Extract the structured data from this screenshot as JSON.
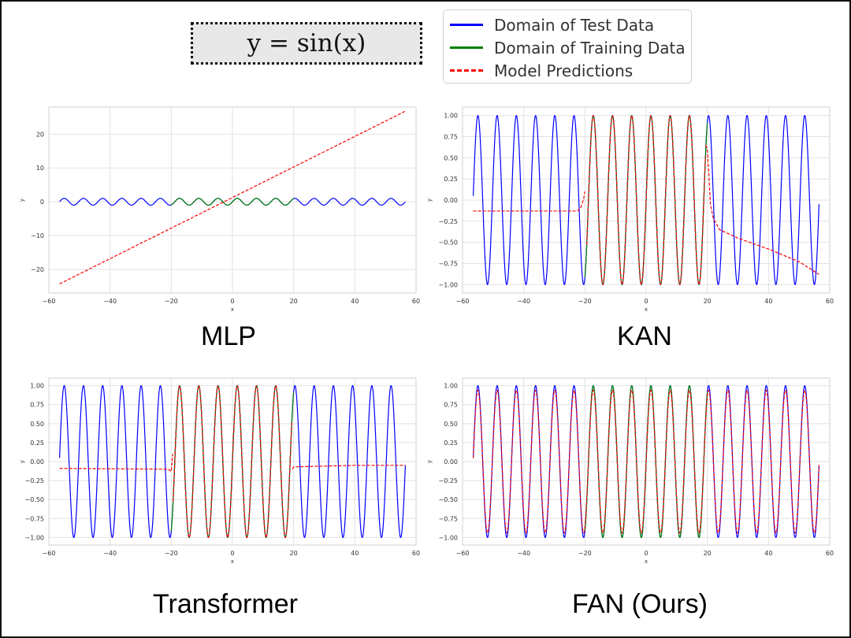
{
  "formula": "y = sin(x)",
  "legend": {
    "items": [
      {
        "label": "Domain of Test Data",
        "color": "#0000ff",
        "style": "solid"
      },
      {
        "label": "Domain of Training Data",
        "color": "#008000",
        "style": "solid"
      },
      {
        "label": "Model Predictions",
        "color": "#ff0000",
        "style": "dashed"
      }
    ]
  },
  "chart_data": [
    {
      "type": "line",
      "title": "MLP",
      "xlabel": "x",
      "ylabel": "y",
      "xlim": [
        -60,
        60
      ],
      "ylim": [
        -27,
        28
      ],
      "xticks": [
        -60,
        -40,
        -20,
        0,
        20,
        40,
        60
      ],
      "yticks": [
        -20,
        -10,
        0,
        10,
        20
      ],
      "ytick_labels": [
        "−20",
        "−10",
        "0",
        "10",
        "20"
      ],
      "xtick_labels": [
        "−60",
        "−40",
        "−20",
        "0",
        "20",
        "40",
        "60"
      ],
      "grid": true,
      "series": [
        {
          "name": "Domain of Test Data",
          "function": "sin(x)",
          "x_range": [
            -56.5,
            56.5
          ],
          "color": "#0000ff"
        },
        {
          "name": "Domain of Training Data",
          "function": "sin(x)",
          "x_range": [
            -20,
            20
          ],
          "color": "#008000"
        },
        {
          "name": "Model Predictions",
          "x": [
            -56.5,
            56.5
          ],
          "y": [
            -24.3,
            26.8
          ],
          "color": "#ff0000",
          "style": "dashed"
        }
      ]
    },
    {
      "type": "line",
      "title": "KAN",
      "xlabel": "x",
      "ylabel": "y",
      "xlim": [
        -60,
        60
      ],
      "ylim": [
        -1.1,
        1.1
      ],
      "xticks": [
        -60,
        -40,
        -20,
        0,
        20,
        40,
        60
      ],
      "xtick_labels": [
        "−60",
        "−40",
        "−20",
        "0",
        "20",
        "40",
        "60"
      ],
      "yticks": [
        -1.0,
        -0.75,
        -0.5,
        -0.25,
        0.0,
        0.25,
        0.5,
        0.75,
        1.0
      ],
      "ytick_labels": [
        "−1.00",
        "−0.75",
        "−0.50",
        "−0.25",
        "0.00",
        "0.25",
        "0.50",
        "0.75",
        "1.00"
      ],
      "grid": true,
      "series": [
        {
          "name": "Domain of Test Data",
          "function": "sin(x)",
          "x_range": [
            -56.5,
            56.5
          ],
          "color": "#0000ff"
        },
        {
          "name": "Domain of Training Data",
          "function": "sin(x)",
          "x_range": [
            -20,
            20
          ],
          "color": "#008000"
        },
        {
          "name": "Model Predictions",
          "color": "#ff0000",
          "style": "dashed",
          "segments": [
            {
              "x": [
                -56.5,
                -22.5
              ],
              "y": [
                -0.13,
                -0.13
              ]
            },
            {
              "x": [
                -22.5,
                -21.5,
                -20.5,
                -20.0
              ],
              "y": [
                -0.13,
                -0.1,
                0.0,
                0.1
              ]
            },
            {
              "function": "sin(x)",
              "x_range": [
                -19.4,
                19.4
              ]
            },
            {
              "x": [
                19.5,
                20.0,
                20.5,
                21.0,
                22.0,
                24.0,
                30.0,
                40.0,
                50.0,
                56.5
              ],
              "y": [
                0.65,
                0.6,
                0.3,
                -0.05,
                -0.22,
                -0.35,
                -0.45,
                -0.58,
                -0.73,
                -0.88
              ]
            }
          ]
        }
      ]
    },
    {
      "type": "line",
      "title": "Transformer",
      "xlabel": "x",
      "ylabel": "y",
      "xlim": [
        -60,
        60
      ],
      "ylim": [
        -1.1,
        1.1
      ],
      "xticks": [
        -60,
        -40,
        -20,
        0,
        20,
        40,
        60
      ],
      "xtick_labels": [
        "−60",
        "−40",
        "−20",
        "0",
        "20",
        "40",
        "60"
      ],
      "yticks": [
        -1.0,
        -0.75,
        -0.5,
        -0.25,
        0.0,
        0.25,
        0.5,
        0.75,
        1.0
      ],
      "ytick_labels": [
        "−1.00",
        "−0.75",
        "−0.50",
        "−0.25",
        "0.00",
        "0.25",
        "0.50",
        "0.75",
        "1.00"
      ],
      "grid": true,
      "series": [
        {
          "name": "Domain of Test Data",
          "function": "sin(x)",
          "x_range": [
            -56.5,
            56.5
          ],
          "color": "#0000ff"
        },
        {
          "name": "Domain of Training Data",
          "function": "sin(x)",
          "x_range": [
            -20,
            20
          ],
          "color": "#008000"
        },
        {
          "name": "Model Predictions",
          "color": "#ff0000",
          "style": "dashed",
          "segments": [
            {
              "x": [
                -56.5,
                -21.0,
                -20.0,
                -19.5
              ],
              "y": [
                -0.09,
                -0.1,
                -0.13,
                0.1
              ]
            },
            {
              "function": "sin(x)",
              "x_range": [
                -19.4,
                19.4
              ]
            },
            {
              "x": [
                19.6,
                20.0,
                30.0,
                40.0,
                56.5
              ],
              "y": [
                -0.1,
                -0.07,
                -0.06,
                -0.05,
                -0.05
              ]
            }
          ]
        }
      ]
    },
    {
      "type": "line",
      "title": "FAN (Ours)",
      "xlabel": "x",
      "ylabel": "y",
      "xlim": [
        -60,
        60
      ],
      "ylim": [
        -1.1,
        1.1
      ],
      "xticks": [
        -60,
        -40,
        -20,
        0,
        20,
        40,
        60
      ],
      "xtick_labels": [
        "−60",
        "−40",
        "−20",
        "0",
        "20",
        "40",
        "60"
      ],
      "yticks": [
        -1.0,
        -0.75,
        -0.5,
        -0.25,
        0.0,
        0.25,
        0.5,
        0.75,
        1.0
      ],
      "ytick_labels": [
        "−1.00",
        "−0.75",
        "−0.50",
        "−0.25",
        "0.00",
        "0.25",
        "0.50",
        "0.75",
        "1.00"
      ],
      "grid": true,
      "series": [
        {
          "name": "Domain of Test Data",
          "function": "sin(x)",
          "x_range": [
            -56.5,
            56.5
          ],
          "color": "#0000ff"
        },
        {
          "name": "Domain of Training Data",
          "function": "sin(x)",
          "x_range": [
            -20,
            20
          ],
          "color": "#008000"
        },
        {
          "name": "Model Predictions",
          "function": "0.94*sin(x)",
          "x_range": [
            -56.5,
            56.5
          ],
          "color": "#ff0000",
          "style": "dashed"
        }
      ]
    }
  ]
}
